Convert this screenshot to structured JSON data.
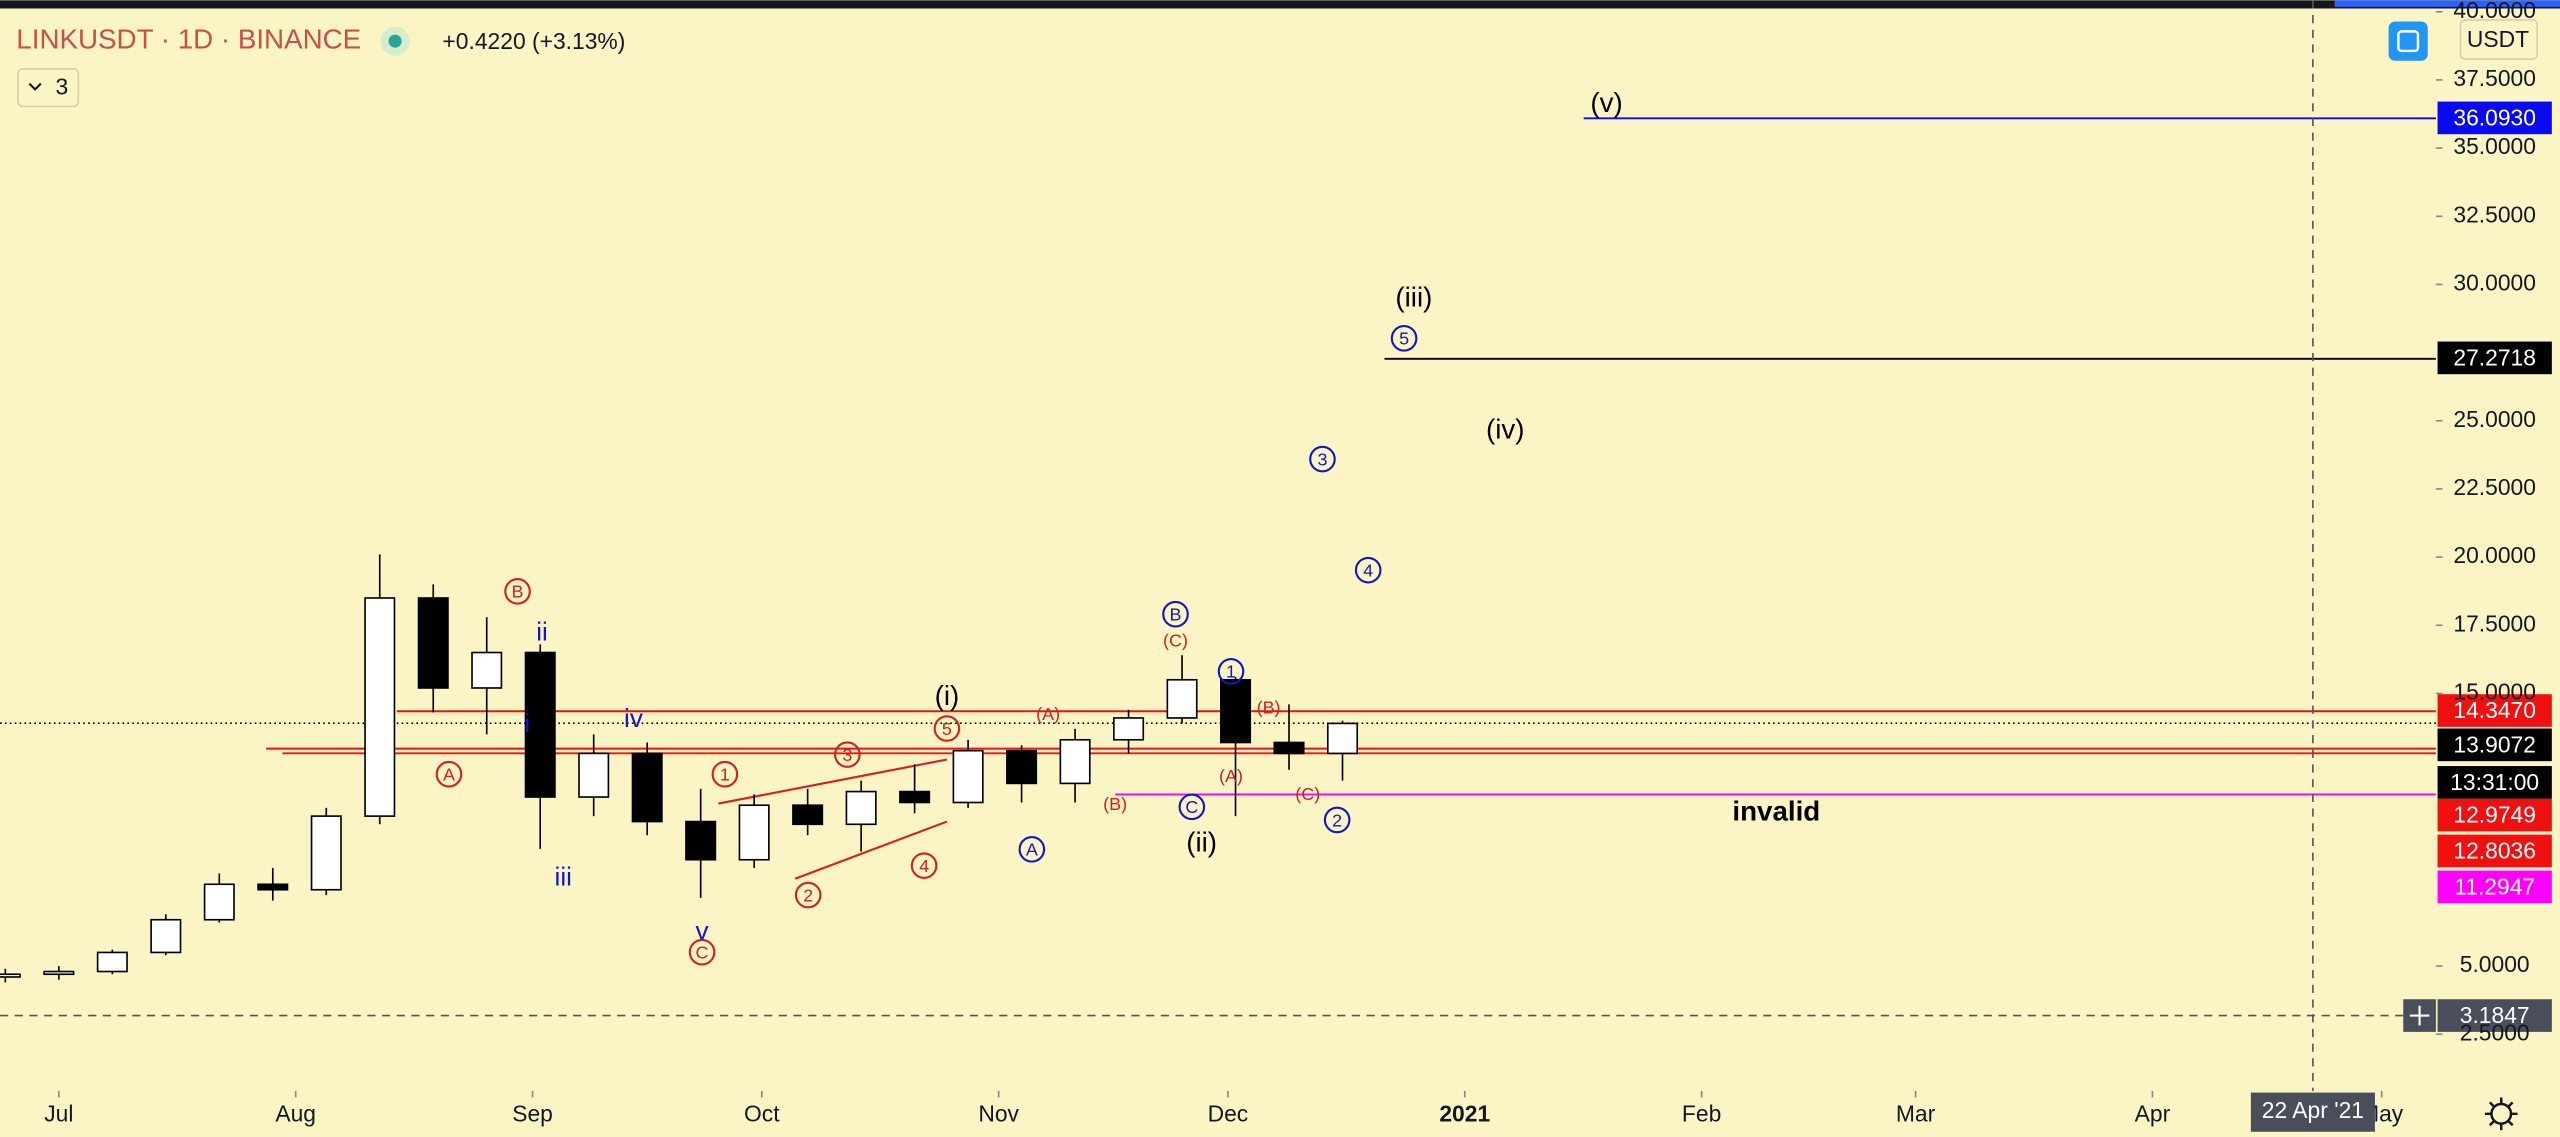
{
  "header": {
    "symbol": "LINKUSDT · 1D · BINANCE",
    "change": "+0.4220 (+3.13%)",
    "interval_count": "3",
    "currency": "USDT"
  },
  "chart_data": {
    "type": "candlestick",
    "x": [
      -7,
      0,
      7,
      14,
      21,
      28,
      35,
      42,
      49,
      56,
      63,
      70,
      77,
      84,
      91,
      98,
      105,
      112,
      119,
      126,
      133,
      140,
      147,
      154,
      161,
      168
    ],
    "open": [
      4.6,
      4.7,
      4.8,
      5.5,
      6.7,
      8.0,
      7.8,
      10.5,
      18.5,
      15.2,
      16.5,
      11.2,
      12.8,
      10.3,
      8.9,
      10.9,
      10.2,
      11.4,
      11.0,
      12.9,
      11.7,
      13.3,
      14.1,
      15.5,
      13.2,
      12.8
    ],
    "high": [
      4.9,
      5.0,
      5.6,
      6.9,
      8.4,
      8.6,
      10.8,
      20.1,
      19.0,
      17.8,
      16.8,
      13.5,
      13.2,
      11.5,
      11.3,
      11.5,
      11.8,
      12.4,
      13.3,
      13.1,
      13.7,
      14.4,
      16.4,
      15.6,
      14.6,
      14.0
    ],
    "low": [
      4.4,
      4.5,
      4.7,
      5.4,
      6.6,
      7.4,
      7.6,
      10.2,
      14.3,
      13.5,
      9.3,
      10.5,
      9.8,
      7.5,
      8.6,
      9.8,
      9.2,
      10.6,
      10.8,
      11.0,
      11.0,
      12.8,
      13.9,
      10.5,
      12.2,
      11.8
    ],
    "close": [
      4.7,
      4.8,
      5.5,
      6.7,
      8.0,
      7.8,
      10.5,
      18.5,
      15.2,
      16.5,
      11.2,
      12.8,
      10.3,
      8.9,
      10.9,
      10.2,
      11.4,
      11.0,
      12.9,
      11.7,
      13.3,
      14.1,
      15.5,
      13.2,
      12.8,
      13.9
    ],
    "up_color": "#ffffff",
    "down_color": "#000000",
    "xlim": [
      -7.7,
      311.1
    ],
    "ylim": [
      0.42,
      40.42
    ],
    "xticks": [
      {
        "value": 0,
        "label": "Jul"
      },
      {
        "value": 31,
        "label": "Aug"
      },
      {
        "value": 62,
        "label": "Sep"
      },
      {
        "value": 92,
        "label": "Oct"
      },
      {
        "value": 123,
        "label": "Nov"
      },
      {
        "value": 153,
        "label": "Dec"
      },
      {
        "value": 184,
        "label": "2021"
      },
      {
        "value": 215,
        "label": "Feb"
      },
      {
        "value": 243,
        "label": "Mar"
      },
      {
        "value": 274,
        "label": "Apr"
      },
      {
        "value": 304,
        "label": "May"
      }
    ],
    "yticks": [
      {
        "value": 2.5,
        "label": "2.5000"
      },
      {
        "value": 5,
        "label": "5.0000"
      },
      {
        "value": 15,
        "label": "15.0000"
      },
      {
        "value": 17.5,
        "label": "17.5000"
      },
      {
        "value": 20,
        "label": "20.0000"
      },
      {
        "value": 22.5,
        "label": "22.5000"
      },
      {
        "value": 25,
        "label": "25.0000"
      },
      {
        "value": 30,
        "label": "30.0000"
      },
      {
        "value": 32.5,
        "label": "32.5000"
      },
      {
        "value": 35,
        "label": "35.0000"
      },
      {
        "value": 37.5,
        "label": "37.5000"
      },
      {
        "value": 40,
        "label": "40.0000"
      }
    ],
    "price_lines": [
      {
        "value": 36.093,
        "label": "36.0930",
        "color": "#0a0af0"
      },
      {
        "value": 27.2718,
        "label": "27.2718",
        "color": "#000000"
      },
      {
        "value": 14.347,
        "label": "14.3470",
        "color": "#f01010"
      },
      {
        "value": 13.9072,
        "label": "13.9072",
        "color": "#000000"
      },
      {
        "value": 12.9749,
        "label": "12.9749",
        "color": "#f01010"
      },
      {
        "value": 12.8036,
        "label": "12.8036",
        "color": "#f01010"
      },
      {
        "value": 11.2947,
        "label": "11.2947",
        "color": "#ff00ff"
      }
    ],
    "countdown": "13:31:00",
    "crosshair": {
      "x": 295,
      "x_label": "22 Apr '21",
      "y": 3.1847,
      "y_label": "3.1847"
    },
    "annotations": [
      {
        "text": "B",
        "color": "#d32020",
        "circled": true
      },
      {
        "text": "A",
        "color": "#d32020",
        "circled": true
      },
      {
        "text": "C",
        "color": "#d32020",
        "circled": true
      },
      {
        "text": "1",
        "color": "#d32020",
        "circled": true
      },
      {
        "text": "3",
        "color": "#d32020",
        "circled": true
      },
      {
        "text": "5",
        "color": "#d32020",
        "circled": true
      },
      {
        "text": "2",
        "color": "#d32020",
        "circled": true
      },
      {
        "text": "4",
        "color": "#d32020",
        "circled": true
      },
      {
        "text": "(A)",
        "color": "#d32020",
        "circled": false
      },
      {
        "text": "(C)",
        "color": "#d32020",
        "circled": false
      },
      {
        "text": "(B)",
        "color": "#d32020",
        "circled": false
      },
      {
        "text": "(A)",
        "color": "#d32020",
        "circled": false
      },
      {
        "text": "(B)",
        "color": "#d32020",
        "circled": false
      },
      {
        "text": "(C)",
        "color": "#d32020",
        "circled": false
      },
      {
        "text": "A",
        "color": "#1515c8",
        "circled": true
      },
      {
        "text": "B",
        "color": "#1515c8",
        "circled": true
      },
      {
        "text": "C",
        "color": "#1515c8",
        "circled": true
      },
      {
        "text": "1",
        "color": "#1515c8",
        "circled": true
      },
      {
        "text": "2",
        "color": "#1515c8",
        "circled": true
      },
      {
        "text": "3",
        "color": "#1515c8",
        "circled": true
      },
      {
        "text": "4",
        "color": "#1515c8",
        "circled": true
      },
      {
        "text": "5",
        "color": "#1515c8",
        "circled": true
      },
      {
        "text": "ii",
        "color": "#1515c8",
        "circled": false
      },
      {
        "text": "i",
        "color": "#1515c8",
        "circled": false
      },
      {
        "text": "iv",
        "color": "#1515c8",
        "circled": false
      },
      {
        "text": "iii",
        "color": "#1515c8",
        "circled": false
      },
      {
        "text": "v",
        "color": "#1515c8",
        "circled": false
      },
      {
        "text": "(i)",
        "color": "#000000",
        "circled": false
      },
      {
        "text": "(ii)",
        "color": "#000000",
        "circled": false
      },
      {
        "text": "(iii)",
        "color": "#000000",
        "circled": false
      },
      {
        "text": "(iv)",
        "color": "#000000",
        "circled": false
      },
      {
        "text": "(v)",
        "color": "#000000",
        "circled": false
      },
      {
        "text": "invalid",
        "color": "#000000",
        "circled": false
      }
    ]
  }
}
